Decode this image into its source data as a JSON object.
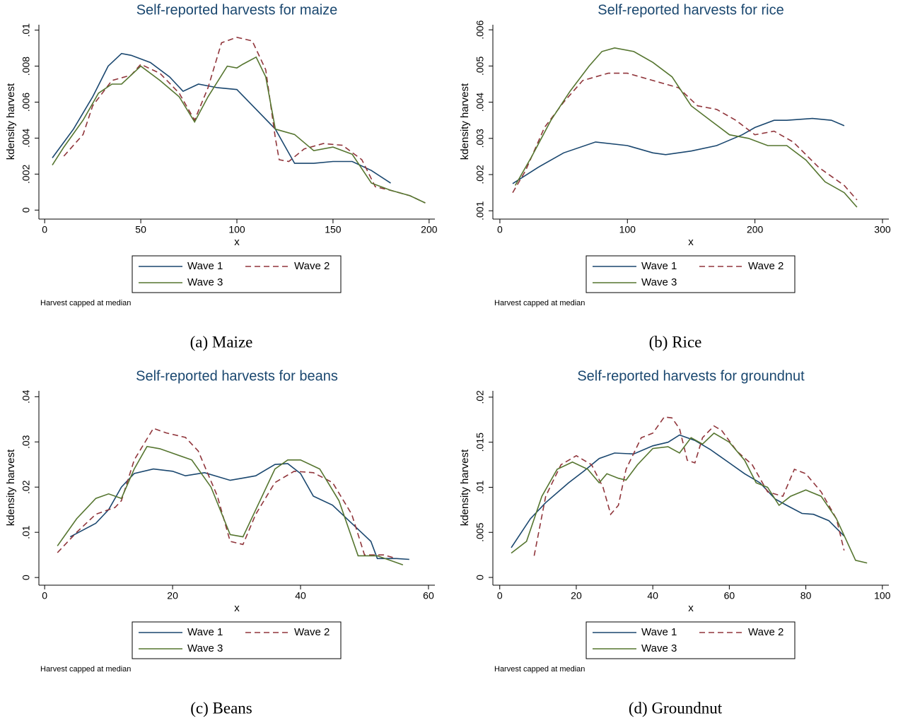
{
  "chart_data": [
    {
      "type": "line",
      "title": "Self-reported harvests for maize",
      "x_label": "x",
      "y_label": "kdensity harvest",
      "note": "Harvest capped at median",
      "caption": "(a) Maize",
      "xlim": [
        -3,
        203
      ],
      "ylim": [
        -0.0005,
        0.0103
      ],
      "xticks": [
        0,
        50,
        100,
        150,
        200
      ],
      "yticks": [
        0,
        {
          "value": 0.002,
          "label": ".002"
        },
        {
          "value": 0.004,
          "label": ".004"
        },
        {
          "value": 0.006,
          "label": ".006"
        },
        {
          "value": 0.008,
          "label": ".008"
        },
        {
          "value": 0.01,
          "label": ".01"
        }
      ],
      "series": [
        {
          "name": "Wave 1",
          "color": "#1a476f",
          "dash": "none",
          "x": [
            4,
            15,
            25,
            33,
            40,
            45,
            55,
            65,
            72,
            80,
            90,
            100,
            110,
            120,
            130,
            140,
            150,
            160,
            170,
            180
          ],
          "values": [
            0.0029,
            0.0045,
            0.0063,
            0.008,
            0.0087,
            0.0086,
            0.0082,
            0.0074,
            0.0066,
            0.007,
            0.0068,
            0.0067,
            0.0056,
            0.0045,
            0.0026,
            0.0026,
            0.0027,
            0.0027,
            0.0022,
            0.0015
          ]
        },
        {
          "name": "Wave 2",
          "color": "#90353b",
          "dash": "8 5",
          "x": [
            10,
            20,
            25,
            35,
            45,
            50,
            60,
            70,
            78,
            85,
            92,
            100,
            108,
            115,
            120,
            122,
            127,
            135,
            145,
            155,
            165,
            172,
            180,
            190,
            198
          ],
          "values": [
            0.003,
            0.0042,
            0.0058,
            0.0072,
            0.0075,
            0.0081,
            0.0076,
            0.0065,
            0.005,
            0.0068,
            0.0093,
            0.0096,
            0.0094,
            0.0078,
            0.004,
            0.0028,
            0.0027,
            0.0034,
            0.0037,
            0.0036,
            0.0028,
            0.0013,
            0.0011,
            0.0008,
            0.0004
          ]
        },
        {
          "name": "Wave 3",
          "color": "#55752f",
          "dash": "none",
          "x": [
            4,
            10,
            20,
            28,
            35,
            40,
            50,
            60,
            70,
            78,
            85,
            95,
            100,
            103,
            110,
            115,
            120,
            130,
            140,
            150,
            160,
            170,
            180,
            190,
            198
          ],
          "values": [
            0.0025,
            0.0035,
            0.005,
            0.0065,
            0.007,
            0.007,
            0.008,
            0.0072,
            0.0063,
            0.0049,
            0.0063,
            0.008,
            0.0079,
            0.0081,
            0.0085,
            0.0074,
            0.0045,
            0.0042,
            0.0033,
            0.0035,
            0.0031,
            0.0015,
            0.0011,
            0.0008,
            0.0004
          ]
        }
      ]
    },
    {
      "type": "line",
      "title": "Self-reported harvests for rice",
      "x_label": "x",
      "y_label": "kdensity harvest",
      "note": "Harvest capped at median",
      "caption": "(b) Rice",
      "xlim": [
        -5.5,
        305
      ],
      "ylim": [
        0.00077,
        0.00614
      ],
      "xticks": [
        0,
        100,
        200,
        300
      ],
      "yticks": [
        {
          "value": 0.001,
          "label": ".001"
        },
        {
          "value": 0.002,
          "label": ".002"
        },
        {
          "value": 0.003,
          "label": ".003"
        },
        {
          "value": 0.004,
          "label": ".004"
        },
        {
          "value": 0.005,
          "label": ".005"
        },
        {
          "value": 0.006,
          "label": ".006"
        }
      ],
      "series": [
        {
          "name": "Wave 1",
          "color": "#1a476f",
          "dash": "none",
          "x": [
            10,
            30,
            50,
            75,
            100,
            120,
            130,
            150,
            170,
            190,
            200,
            215,
            225,
            245,
            260,
            270
          ],
          "values": [
            0.00175,
            0.0022,
            0.0026,
            0.0029,
            0.0028,
            0.0026,
            0.00255,
            0.00265,
            0.0028,
            0.0031,
            0.0033,
            0.0035,
            0.0035,
            0.00355,
            0.0035,
            0.00335
          ]
        },
        {
          "name": "Wave 2",
          "color": "#90353b",
          "dash": "8 5",
          "x": [
            10,
            20,
            35,
            50,
            65,
            85,
            100,
            120,
            140,
            155,
            170,
            185,
            200,
            215,
            230,
            250,
            270,
            280
          ],
          "values": [
            0.0015,
            0.0021,
            0.0033,
            0.004,
            0.0046,
            0.0048,
            0.0048,
            0.0046,
            0.0044,
            0.0039,
            0.0038,
            0.0035,
            0.0031,
            0.0032,
            0.0029,
            0.0022,
            0.0017,
            0.0013
          ]
        },
        {
          "name": "Wave 3",
          "color": "#55752f",
          "dash": "none",
          "x": [
            12,
            25,
            40,
            55,
            70,
            80,
            90,
            105,
            120,
            135,
            150,
            165,
            180,
            195,
            210,
            225,
            240,
            255,
            270,
            280
          ],
          "values": [
            0.0017,
            0.0025,
            0.0035,
            0.0043,
            0.005,
            0.0054,
            0.0055,
            0.0054,
            0.0051,
            0.0047,
            0.0039,
            0.0035,
            0.0031,
            0.003,
            0.0028,
            0.0028,
            0.0024,
            0.0018,
            0.0015,
            0.0011
          ]
        }
      ]
    },
    {
      "type": "line",
      "title": "Self-reported harvests for beans",
      "x_label": "x",
      "y_label": "kdensity harvest",
      "note": "Harvest capped at median",
      "caption": "(c) Beans",
      "xlim": [
        -0.9,
        61
      ],
      "ylim": [
        -0.0017,
        0.0413
      ],
      "xticks": [
        0,
        20,
        40,
        60
      ],
      "yticks": [
        0,
        {
          "value": 0.01,
          "label": ".01"
        },
        {
          "value": 0.02,
          "label": ".02"
        },
        {
          "value": 0.03,
          "label": ".03"
        },
        {
          "value": 0.04,
          "label": ".04"
        }
      ],
      "series": [
        {
          "name": "Wave 1",
          "color": "#1a476f",
          "dash": "none",
          "x": [
            4,
            8,
            10,
            12,
            14,
            17,
            20,
            22,
            25,
            29,
            31,
            33,
            36,
            38,
            40,
            42,
            45,
            48,
            51,
            52,
            55,
            57
          ],
          "values": [
            0.009,
            0.012,
            0.015,
            0.02,
            0.023,
            0.024,
            0.0235,
            0.0225,
            0.0232,
            0.0215,
            0.022,
            0.0225,
            0.025,
            0.0252,
            0.023,
            0.018,
            0.016,
            0.012,
            0.008,
            0.0042,
            0.0042,
            0.004
          ]
        },
        {
          "name": "Wave 2",
          "color": "#90353b",
          "dash": "8 5",
          "x": [
            2,
            5,
            8,
            11,
            12,
            14,
            17,
            19,
            22,
            24,
            27,
            29,
            31,
            33,
            36,
            39,
            42,
            45,
            48,
            50,
            53,
            55
          ],
          "values": [
            0.0055,
            0.01,
            0.014,
            0.0155,
            0.017,
            0.026,
            0.033,
            0.032,
            0.031,
            0.028,
            0.018,
            0.008,
            0.0073,
            0.014,
            0.021,
            0.0235,
            0.0232,
            0.021,
            0.014,
            0.005,
            0.005,
            0.0042
          ]
        },
        {
          "name": "Wave 3",
          "color": "#55752f",
          "dash": "none",
          "x": [
            2,
            5,
            8,
            10,
            12,
            14,
            16,
            18,
            20,
            23,
            26,
            29,
            31,
            33,
            36,
            38,
            40,
            43,
            46,
            49,
            52,
            56
          ],
          "values": [
            0.007,
            0.013,
            0.0175,
            0.0185,
            0.0175,
            0.024,
            0.029,
            0.0285,
            0.0275,
            0.026,
            0.02,
            0.0095,
            0.009,
            0.015,
            0.024,
            0.026,
            0.026,
            0.024,
            0.017,
            0.0048,
            0.0048,
            0.0028
          ]
        }
      ]
    },
    {
      "type": "line",
      "title": "Self-reported harvests for groundnut",
      "x_label": "x",
      "y_label": "kdensity harvest",
      "note": "Harvest capped at median",
      "caption": "(d) Groundnut",
      "xlim": [
        -1.8,
        101.7
      ],
      "ylim": [
        -0.00086,
        0.0207
      ],
      "xticks": [
        0,
        20,
        40,
        60,
        80,
        100
      ],
      "yticks": [
        0,
        {
          "value": 0.005,
          "label": ".005"
        },
        {
          "value": 0.01,
          "label": ".01"
        },
        {
          "value": 0.015,
          "label": ".015"
        },
        {
          "value": 0.02,
          "label": ".02"
        }
      ],
      "series": [
        {
          "name": "Wave 1",
          "color": "#1a476f",
          "dash": "none",
          "x": [
            3,
            8,
            12,
            18,
            22,
            26,
            30,
            35,
            40,
            44,
            47,
            51,
            55,
            60,
            64,
            68,
            72,
            75,
            79,
            82,
            86,
            90
          ],
          "values": [
            0.0033,
            0.0065,
            0.0083,
            0.0105,
            0.0118,
            0.0132,
            0.0138,
            0.0137,
            0.0146,
            0.015,
            0.0158,
            0.0152,
            0.0142,
            0.0127,
            0.0115,
            0.0105,
            0.0087,
            0.008,
            0.0071,
            0.007,
            0.0063,
            0.0046
          ]
        },
        {
          "name": "Wave 2",
          "color": "#90353b",
          "dash": "8 5",
          "x": [
            9,
            12,
            16,
            20,
            24,
            27,
            29,
            31,
            33,
            37,
            40,
            43,
            45,
            47,
            49,
            51,
            53,
            56,
            58,
            62,
            66,
            70,
            74,
            77,
            80,
            84,
            88,
            90
          ],
          "values": [
            0.0024,
            0.009,
            0.0125,
            0.0135,
            0.0125,
            0.01,
            0.007,
            0.008,
            0.012,
            0.0155,
            0.016,
            0.0178,
            0.0177,
            0.0165,
            0.013,
            0.0127,
            0.0155,
            0.0168,
            0.0163,
            0.014,
            0.0125,
            0.0095,
            0.009,
            0.012,
            0.0115,
            0.0095,
            0.0065,
            0.003
          ]
        },
        {
          "name": "Wave 3",
          "color": "#55752f",
          "dash": "none",
          "x": [
            3,
            7,
            11,
            15,
            19,
            23,
            26,
            28,
            31,
            33,
            36,
            40,
            44,
            47,
            50,
            53,
            56,
            60,
            64,
            67,
            70,
            73,
            76,
            80,
            84,
            88,
            93,
            96
          ],
          "values": [
            0.0027,
            0.004,
            0.009,
            0.012,
            0.0128,
            0.012,
            0.0105,
            0.0115,
            0.011,
            0.0108,
            0.0125,
            0.0143,
            0.0145,
            0.0138,
            0.0155,
            0.0148,
            0.016,
            0.015,
            0.013,
            0.0105,
            0.01,
            0.008,
            0.009,
            0.0097,
            0.009,
            0.0065,
            0.0019,
            0.0016
          ]
        }
      ]
    }
  ]
}
